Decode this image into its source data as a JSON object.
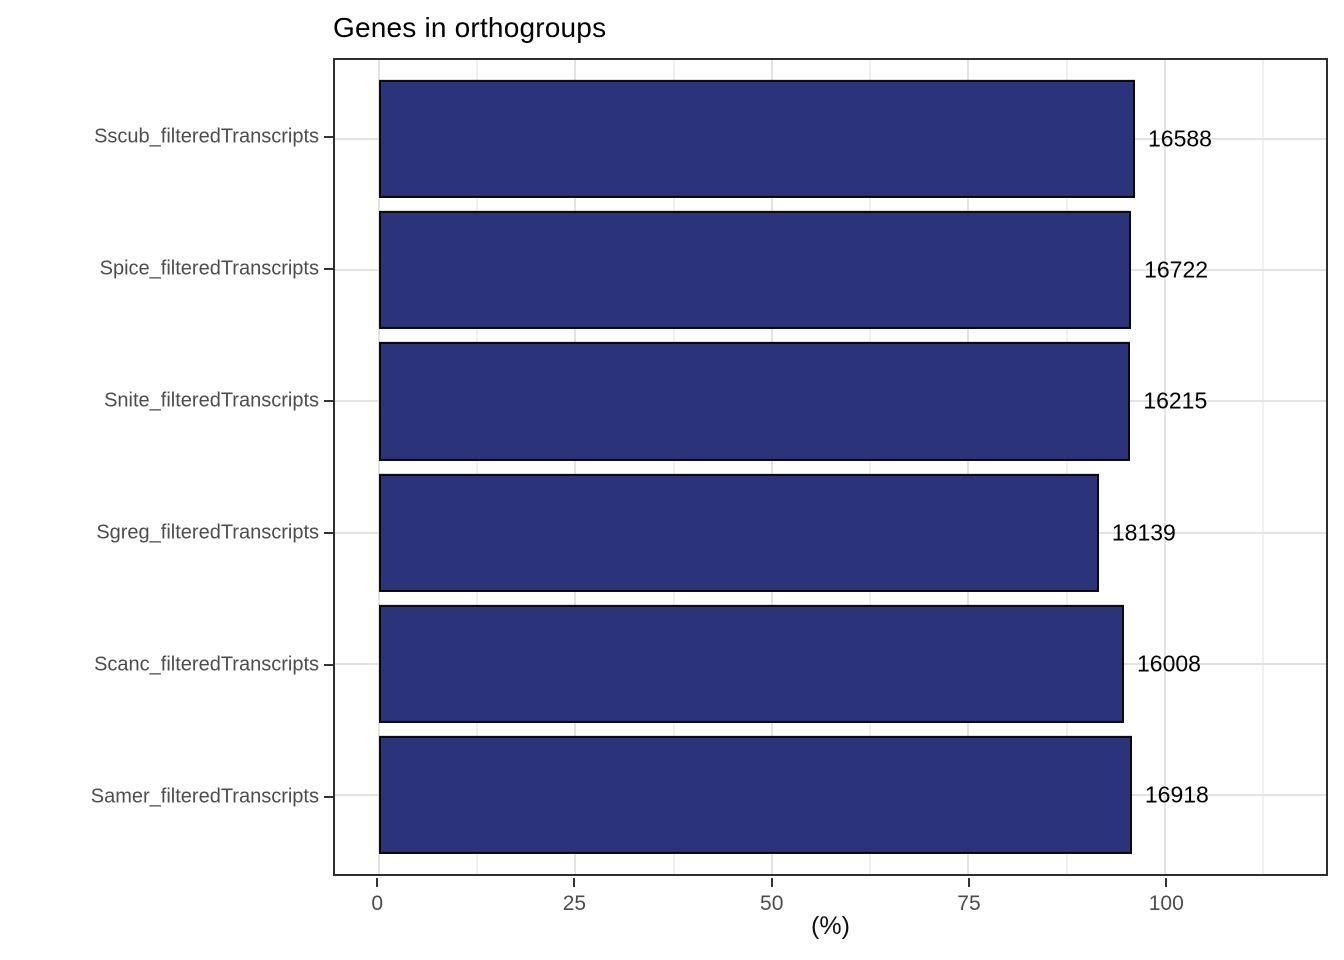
{
  "chart_data": {
    "type": "bar",
    "orientation": "horizontal",
    "title": "Genes in orthogroups",
    "xlabel": "(%)",
    "ylabel": "",
    "legend": "none",
    "grid": "on",
    "categories": [
      "Sscub_filteredTranscripts",
      "Spice_filteredTranscripts",
      "Snite_filteredTranscripts",
      "Sgreg_filteredTranscripts",
      "Scanc_filteredTranscripts",
      "Samer_filteredTranscripts"
    ],
    "bars": [
      {
        "category": "Sscub_filteredTranscripts",
        "percent": 96.2,
        "count_label": "16588"
      },
      {
        "category": "Spice_filteredTranscripts",
        "percent": 95.7,
        "count_label": "16722"
      },
      {
        "category": "Snite_filteredTranscripts",
        "percent": 95.6,
        "count_label": "16215"
      },
      {
        "category": "Sgreg_filteredTranscripts",
        "percent": 91.6,
        "count_label": "18139"
      },
      {
        "category": "Scanc_filteredTranscripts",
        "percent": 94.8,
        "count_label": "16008"
      },
      {
        "category": "Samer_filteredTranscripts",
        "percent": 95.8,
        "count_label": "16918"
      }
    ],
    "axis": {
      "xlim": [
        -5.6,
        120.5
      ],
      "x_major_ticks": [
        0,
        25,
        50,
        75,
        100
      ],
      "x_major_tick_labels": [
        "0",
        "25",
        "50",
        "75",
        "100"
      ],
      "x_minor_ticks": [
        12.5,
        37.5,
        62.5,
        87.5,
        112.5
      ],
      "bands_total_units": 6.2,
      "band_edge_pad_units": 0.6,
      "bar_width_units": 0.9
    },
    "colors": {
      "bar_fill": "#2b337b",
      "bar_stroke": "#0a0a0a",
      "grid_major": "#e3e3e3",
      "grid_minor": "#f0f0f0",
      "panel_border": "#2e2e2e",
      "tick_text": "#4d4d4d",
      "title_text": "#000000"
    }
  }
}
